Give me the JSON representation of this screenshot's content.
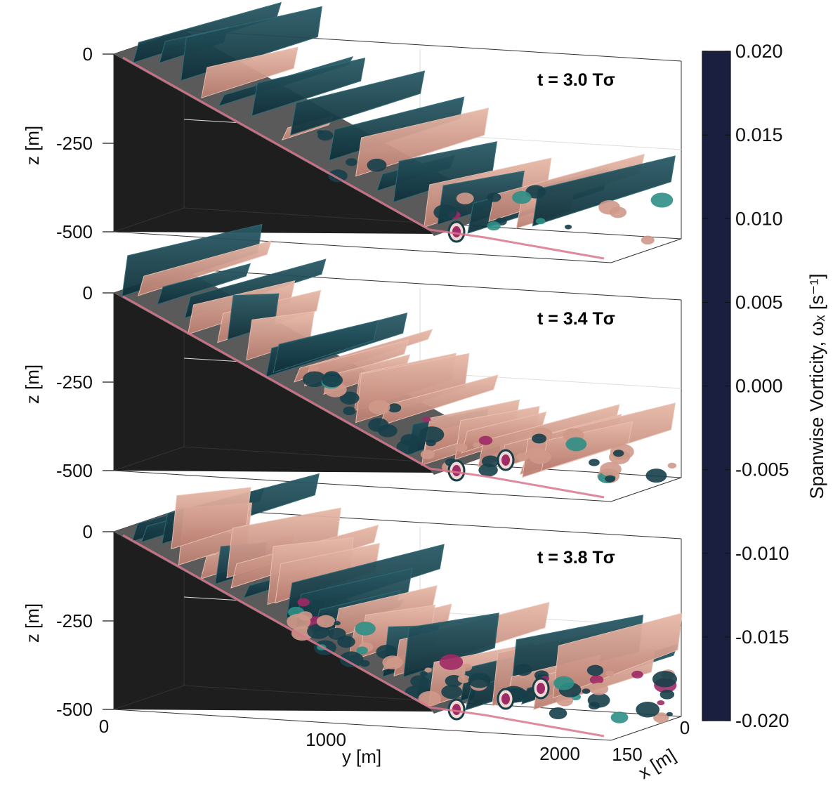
{
  "chart_data": {
    "type": "heatmap",
    "panels": [
      {
        "time_label": "t = 3.0 Tσ"
      },
      {
        "time_label": "t = 3.4 Tσ"
      },
      {
        "time_label": "t = 3.8 Tσ"
      }
    ],
    "zlabel": "z [m]",
    "ylabel": "y [m]",
    "xlabel": "x [m]",
    "z_ticks": [
      0,
      -250,
      -500
    ],
    "z_tick_labels": [
      "0",
      "-250",
      "-500"
    ],
    "y_ticks": [
      0,
      1000,
      2000
    ],
    "y_tick_labels": [
      "0",
      "1000",
      "2000"
    ],
    "x_ticks": [
      150,
      0
    ],
    "x_tick_labels": [
      "150",
      "0"
    ],
    "zlim": [
      -500,
      0
    ],
    "ylim": [
      0,
      2200
    ],
    "xlim": [
      0,
      150
    ],
    "colorbar": {
      "label": "Spanwise Vorticity, ωₓ [s⁻¹]",
      "range": [
        -0.02,
        0.02
      ],
      "ticks": [
        0.02,
        0.015,
        0.01,
        0.005,
        0.0,
        -0.005,
        -0.01,
        -0.015,
        -0.02
      ],
      "tick_labels": [
        "0.020",
        "0.015",
        "0.010",
        "0.005",
        "0.000",
        "-0.005",
        "-0.010",
        "-0.015",
        "-0.020"
      ],
      "stops": [
        "#1a1f3f",
        "#1c3f58",
        "#1f6f6c",
        "#4f9a82",
        "#a9c9ac",
        "#f6f4f0",
        "#ecc0a8",
        "#df8c74",
        "#c4566b",
        "#8a2a62",
        "#3e1043"
      ]
    },
    "colors": {
      "bottom": "#1e1e1e",
      "dark_structure": "#163f4a",
      "dark_edge": "#2f6b77",
      "light_structure": "#cf998a",
      "light_edge": "#e9c1b2",
      "vortex_core": "#9e2a66"
    }
  }
}
